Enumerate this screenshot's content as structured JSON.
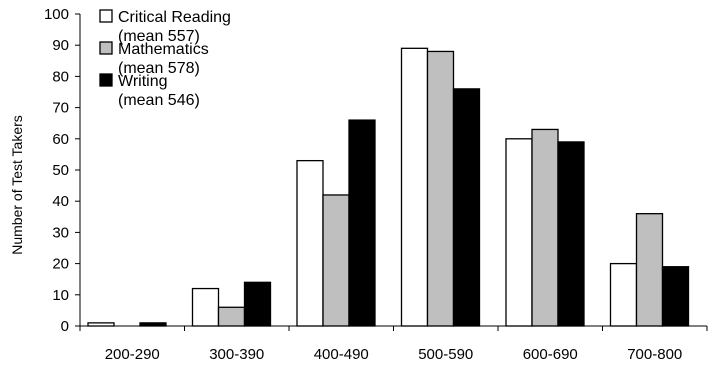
{
  "chart_data": {
    "type": "bar",
    "categories": [
      "200-290",
      "300-390",
      "400-490",
      "500-590",
      "600-690",
      "700-800"
    ],
    "series": [
      {
        "name": "Critical Reading",
        "name_line2": "(mean 557)",
        "values": [
          1,
          12,
          53,
          89,
          60,
          20
        ],
        "color": "#ffffff"
      },
      {
        "name": "Mathematics",
        "name_line2": "(mean 578)",
        "values": [
          0,
          6,
          42,
          88,
          63,
          36
        ],
        "color": "#bfbfbf"
      },
      {
        "name": "Writing",
        "name_line2": "(mean 546)",
        "values": [
          1,
          14,
          66,
          76,
          59,
          19
        ],
        "color": "#000000"
      }
    ],
    "xlabel": "",
    "ylabel": "Number of Test Takers",
    "ylim": [
      0,
      100
    ],
    "yticks": [
      0,
      10,
      20,
      30,
      40,
      50,
      60,
      70,
      80,
      90,
      100
    ],
    "grid": false,
    "legend": "top-left"
  }
}
